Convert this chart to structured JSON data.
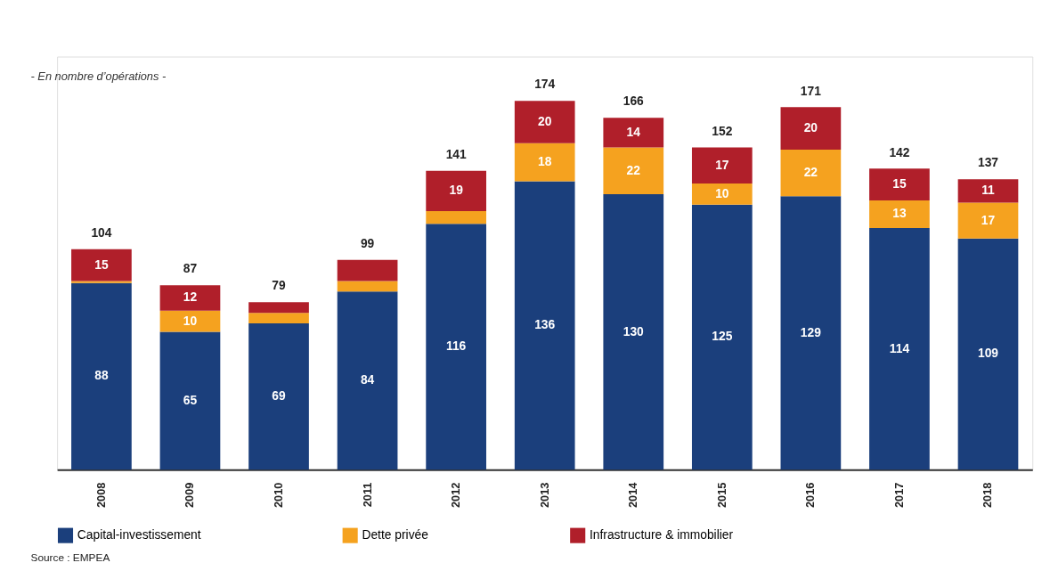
{
  "chart_data": {
    "type": "bar",
    "stacked": true,
    "subtitle": "- En nombre d’opérations -",
    "categories": [
      "2008",
      "2009",
      "2010",
      "2011",
      "2012",
      "2013",
      "2014",
      "2015",
      "2016",
      "2017",
      "2018"
    ],
    "series": [
      {
        "name": "Capital-investissement",
        "color": "#1b3f7c",
        "values": [
          88,
          65,
          69,
          84,
          116,
          136,
          130,
          125,
          129,
          114,
          109
        ],
        "value_labels": [
          "88",
          "65",
          "69",
          "84",
          "116",
          "136",
          "130",
          "125",
          "129",
          "114",
          "109"
        ]
      },
      {
        "name": "Dette privée",
        "color": "#f5a21f",
        "values": [
          1,
          10,
          5,
          5,
          6,
          18,
          22,
          10,
          22,
          13,
          17
        ],
        "value_labels": [
          null,
          "10",
          null,
          null,
          null,
          "18",
          "22",
          "10",
          "22",
          "13",
          "17"
        ]
      },
      {
        "name": "Infrastructure & immobilier",
        "color": "#b01f2a",
        "values": [
          15,
          12,
          5,
          10,
          19,
          20,
          14,
          17,
          20,
          15,
          11
        ],
        "value_labels": [
          "15",
          "12",
          null,
          null,
          "19",
          "20",
          "14",
          "17",
          "20",
          "15",
          "11"
        ]
      }
    ],
    "totals": [
      "104",
      "87",
      "79",
      "99",
      "141",
      "174",
      "166",
      "152",
      "171",
      "142",
      "137"
    ],
    "legend": "bottom",
    "grid": false,
    "tick_labels": "x",
    "annotations": [
      "Source : EMPEA"
    ]
  }
}
